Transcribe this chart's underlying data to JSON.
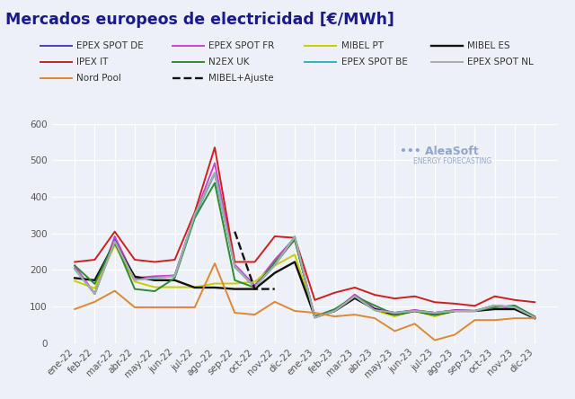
{
  "title": "Mercados europeos de electricidad [€/MWh]",
  "x_labels": [
    "ene-22",
    "feb-22",
    "mar-22",
    "abr-22",
    "may-22",
    "jun-22",
    "jul-22",
    "ago-22",
    "sep-22",
    "oct-22",
    "nov-22",
    "dic-22",
    "ene-23",
    "feb-23",
    "mar-23",
    "abr-23",
    "may-23",
    "jun-23",
    "jul-23",
    "ago-23",
    "sep-23",
    "oct-23",
    "nov-23",
    "dic-23"
  ],
  "ylim": [
    0,
    600
  ],
  "yticks": [
    0,
    100,
    200,
    300,
    400,
    500,
    600
  ],
  "series": [
    {
      "name": "EPEX SPOT DE",
      "color": "#4444bb",
      "linewidth": 1.4,
      "linestyle": "solid",
      "data": [
        205,
        135,
        285,
        175,
        180,
        185,
        350,
        465,
        210,
        155,
        215,
        285,
        70,
        88,
        128,
        92,
        83,
        90,
        83,
        90,
        88,
        103,
        98,
        70
      ]
    },
    {
      "name": "EPEX SPOT FR",
      "color": "#cc44cc",
      "linewidth": 1.4,
      "linestyle": "solid",
      "data": [
        212,
        135,
        292,
        178,
        183,
        185,
        350,
        492,
        215,
        158,
        228,
        288,
        70,
        88,
        133,
        95,
        83,
        90,
        83,
        90,
        88,
        103,
        93,
        70
      ]
    },
    {
      "name": "MIBEL PT",
      "color": "#cccc00",
      "linewidth": 1.4,
      "linestyle": "solid",
      "data": [
        170,
        150,
        268,
        168,
        153,
        153,
        153,
        163,
        163,
        168,
        212,
        242,
        73,
        88,
        128,
        90,
        73,
        88,
        73,
        88,
        88,
        103,
        98,
        68
      ]
    },
    {
      "name": "MIBEL ES",
      "color": "#111111",
      "linewidth": 1.7,
      "linestyle": "solid",
      "data": [
        178,
        172,
        275,
        182,
        172,
        172,
        152,
        152,
        148,
        148,
        192,
        222,
        73,
        88,
        123,
        93,
        78,
        88,
        78,
        88,
        88,
        93,
        93,
        68
      ]
    },
    {
      "name": "IPEX IT",
      "color": "#cc2020",
      "linewidth": 1.4,
      "linestyle": "solid",
      "data": [
        222,
        228,
        305,
        228,
        222,
        228,
        358,
        535,
        222,
        222,
        292,
        288,
        118,
        138,
        152,
        132,
        122,
        128,
        112,
        108,
        102,
        128,
        118,
        112
      ]
    },
    {
      "name": "N2EX UK",
      "color": "#338833",
      "linewidth": 1.4,
      "linestyle": "solid",
      "data": [
        212,
        162,
        278,
        148,
        142,
        178,
        342,
        438,
        172,
        152,
        222,
        282,
        73,
        93,
        128,
        103,
        78,
        88,
        78,
        88,
        88,
        98,
        103,
        73
      ]
    },
    {
      "name": "EPEX SPOT BE",
      "color": "#22bbbb",
      "linewidth": 1.4,
      "linestyle": "solid",
      "data": [
        202,
        135,
        278,
        173,
        178,
        183,
        348,
        463,
        208,
        153,
        213,
        292,
        70,
        88,
        128,
        90,
        83,
        88,
        83,
        88,
        88,
        103,
        98,
        70
      ]
    },
    {
      "name": "EPEX SPOT NL",
      "color": "#aaaaaa",
      "linewidth": 1.4,
      "linestyle": "solid",
      "data": [
        203,
        135,
        278,
        173,
        178,
        183,
        353,
        466,
        210,
        153,
        213,
        291,
        70,
        88,
        128,
        90,
        83,
        88,
        83,
        88,
        88,
        103,
        98,
        70
      ]
    },
    {
      "name": "Nord Pool",
      "color": "#dd8833",
      "linewidth": 1.4,
      "linestyle": "solid",
      "data": [
        93,
        113,
        143,
        98,
        98,
        98,
        98,
        218,
        83,
        78,
        113,
        88,
        83,
        73,
        78,
        68,
        33,
        53,
        8,
        23,
        63,
        63,
        68,
        68
      ]
    },
    {
      "name": "MIBEL+Ajuste",
      "color": "#111111",
      "linewidth": 1.7,
      "linestyle": "dashed",
      "data": [
        null,
        null,
        null,
        null,
        null,
        null,
        null,
        null,
        305,
        148,
        148,
        null,
        70,
        null,
        null,
        null,
        null,
        null,
        null,
        null,
        null,
        null,
        null,
        null
      ]
    }
  ],
  "legend_rows": [
    [
      "EPEX SPOT DE",
      "EPEX SPOT FR",
      "MIBEL PT",
      "MIBEL ES"
    ],
    [
      "IPEX IT",
      "N2EX UK",
      "EPEX SPOT BE",
      "EPEX SPOT NL"
    ],
    [
      "Nord Pool",
      "MIBEL+Ajuste"
    ]
  ],
  "background_color": "#edf1f7",
  "grid_color": "#ffffff",
  "title_color": "#1a1a8c",
  "title_fontsize": 12.5,
  "tick_fontsize": 7.5,
  "legend_fontsize": 7.5,
  "watermark_color": "#4466aa",
  "watermark_main": "AleaSoft",
  "watermark_sub": "ENERGY FORECASTING"
}
